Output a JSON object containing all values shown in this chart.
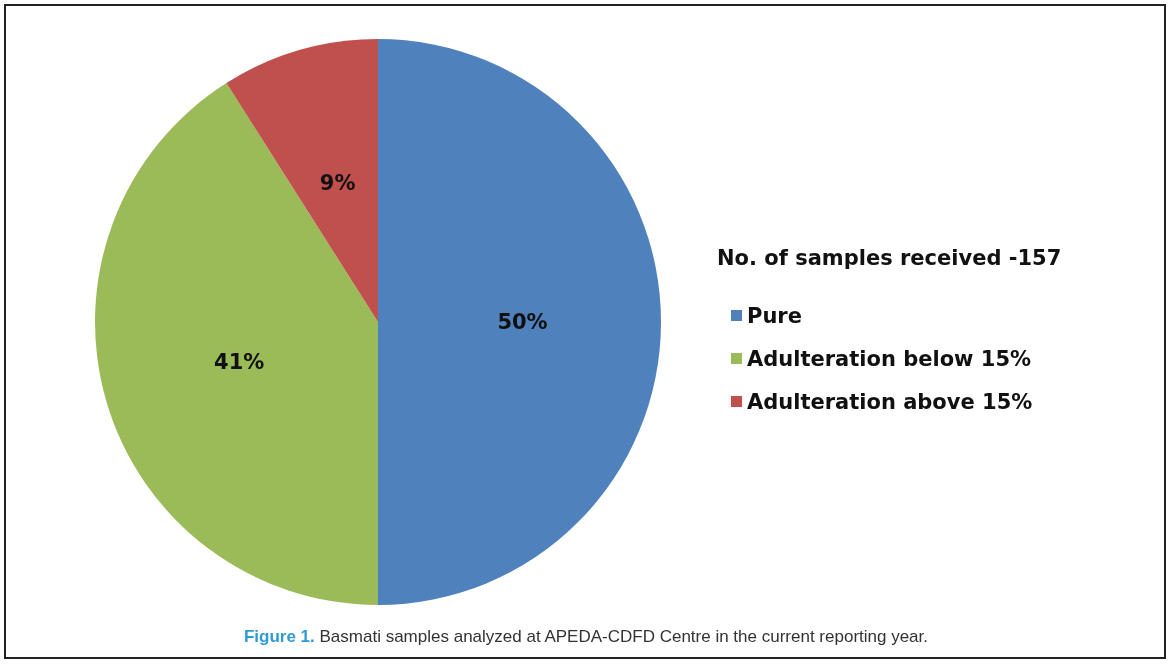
{
  "chart_data": {
    "type": "pie",
    "categories": [
      "Pure",
      "Adulteration below 15%",
      "Adulteration above 15%"
    ],
    "values": [
      50,
      41,
      9
    ],
    "colors": [
      "#4f81bd",
      "#9bbb59",
      "#c0504d"
    ],
    "legend_title": "No. of samples received -157",
    "legend": "right",
    "value_labels": [
      "50%",
      "41%",
      "9%"
    ],
    "annotations": [
      "Figure 1. Basmati samples analyzed at APEDA-CDFD Centre in the current reporting year."
    ]
  }
}
